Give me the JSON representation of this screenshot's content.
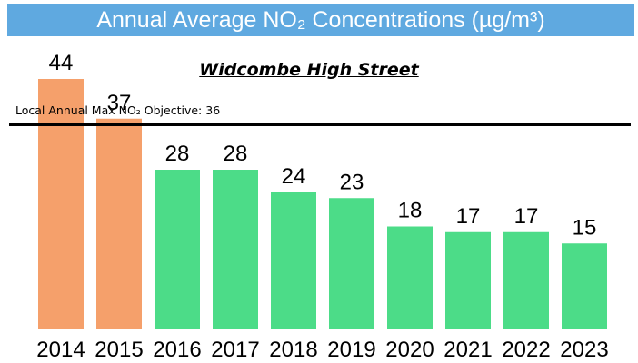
{
  "chart_data": {
    "type": "bar",
    "title": "Annual Average NO₂ Concentrations (µg/m³)",
    "subtitle": "Widcombe High Street",
    "xlabel": "",
    "ylabel": "",
    "categories": [
      "2014",
      "2015",
      "2016",
      "2017",
      "2018",
      "2019",
      "2020",
      "2021",
      "2022",
      "2023"
    ],
    "values": [
      44,
      37,
      28,
      28,
      24,
      23,
      18,
      17,
      17,
      15
    ],
    "ylim": [
      0,
      50
    ],
    "grid": false,
    "colors": {
      "above_objective": "#f5a06b",
      "below_objective": "#4cdc88",
      "banner": "#5fa9e0",
      "objective_line": "#000000"
    },
    "annotations": [
      {
        "label": "Local Annual Max NO₂ Objective: 36",
        "value": 36
      }
    ]
  }
}
